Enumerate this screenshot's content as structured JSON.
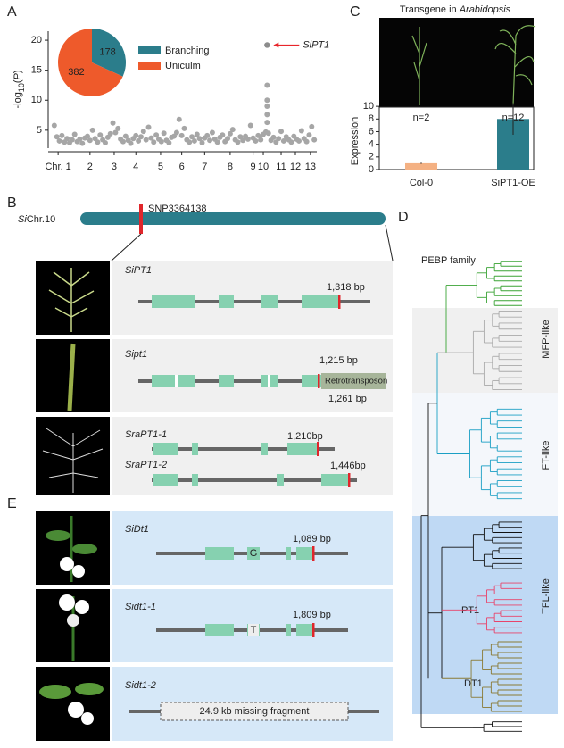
{
  "panel_labels": {
    "a": "A",
    "b": "B",
    "c": "C",
    "d": "D",
    "e": "E"
  },
  "chart_data": [
    {
      "type": "scatter",
      "ylabel": {
        "main": "-log",
        "sub": "10",
        "open": "(",
        "italic": "P",
        "close": ")"
      },
      "xlim": [
        0,
        104
      ],
      "ylim": [
        2,
        21.5
      ],
      "yticks": [
        5,
        10,
        15,
        20
      ],
      "xticks": [
        {
          "value": 2.5,
          "label": "Chr. 1"
        },
        {
          "value": 15,
          "label": "2"
        },
        {
          "value": 24.5,
          "label": "3"
        },
        {
          "value": 33,
          "label": "4"
        },
        {
          "value": 42.7,
          "label": "5"
        },
        {
          "value": 51,
          "label": "6"
        },
        {
          "value": 60,
          "label": "7"
        },
        {
          "value": 70,
          "label": "8"
        },
        {
          "value": 79,
          "label": "9"
        },
        {
          "value": 83,
          "label": "10"
        },
        {
          "value": 90,
          "label": "11"
        },
        {
          "value": 95.6,
          "label": "12"
        },
        {
          "value": 101.5,
          "label": "13"
        }
      ],
      "color": "#a6a6a6",
      "x": [
        1,
        2,
        3,
        4,
        5,
        6,
        7,
        8,
        9,
        10,
        11,
        12,
        13,
        14,
        15,
        16,
        17,
        18,
        19,
        20,
        21,
        22,
        23,
        24,
        25,
        26,
        27,
        28,
        29,
        30,
        31,
        32,
        33,
        34,
        35,
        36,
        37,
        38,
        39,
        40,
        41,
        42,
        43,
        44,
        45,
        46,
        47,
        48,
        49,
        50,
        51,
        52,
        53,
        54,
        55,
        56,
        57,
        58,
        59,
        60,
        61,
        62,
        63,
        64,
        65,
        66,
        67,
        68,
        69,
        70,
        71,
        72,
        73,
        74,
        75,
        76,
        77,
        78,
        79,
        80,
        81,
        82,
        83,
        84,
        84.5,
        84.5,
        84.5,
        84.5,
        84.5,
        85,
        86,
        87,
        88,
        89,
        90,
        91,
        92,
        93,
        94,
        95,
        96,
        97,
        98,
        99,
        100,
        101,
        102,
        103
      ],
      "y": [
        5.8,
        3.9,
        3.2,
        4.1,
        3.0,
        3.6,
        2.9,
        3.4,
        4.3,
        3.1,
        3.5,
        2.8,
        3.7,
        4.0,
        3.3,
        5.0,
        3.6,
        3.0,
        4.2,
        3.4,
        2.9,
        3.8,
        4.4,
        6.2,
        4.6,
        5.3,
        3.5,
        3.1,
        4.0,
        3.3,
        2.8,
        3.6,
        4.1,
        3.2,
        3.9,
        4.8,
        3.4,
        5.5,
        3.7,
        3.0,
        4.2,
        3.5,
        3.1,
        4.5,
        3.3,
        2.9,
        3.8,
        4.0,
        4.6,
        6.8,
        4.1,
        5.3,
        3.4,
        3.0,
        3.9,
        3.2,
        4.3,
        3.6,
        2.9,
        3.7,
        4.1,
        3.3,
        4.6,
        3.5,
        3.0,
        3.8,
        4.2,
        3.1,
        3.6,
        4.4,
        5.1,
        3.4,
        3.0,
        3.9,
        3.3,
        4.0,
        3.5,
        5.8,
        3.7,
        3.2,
        4.1,
        3.4,
        4.3,
        4.7,
        12.5,
        10.0,
        9.0,
        7.6,
        6.3,
        4.5,
        3.3,
        3.8,
        3.0,
        3.6,
        4.8,
        3.2,
        3.9,
        3.4,
        3.0,
        4.0,
        3.5,
        3.2,
        4.9,
        3.6,
        3.1,
        4.2,
        5.6,
        3.4
      ],
      "highlight": {
        "name": "SiPT1",
        "x": 84.5,
        "y": 19.2,
        "color": "#8c8c8c",
        "arrow_color": "#e8262b"
      }
    },
    {
      "type": "pie",
      "categories": [
        "Branching",
        "Uniculm"
      ],
      "values": [
        178,
        382
      ],
      "colors": [
        "#2b7d8b",
        "#ee5a2b"
      ]
    },
    {
      "type": "bar",
      "title": {
        "text": "Transgene in ",
        "italic": "Arabidopsis"
      },
      "ylabel": "Expression",
      "categories": [
        "Col-0",
        "SiPT1-OE"
      ],
      "values": [
        1,
        8
      ],
      "errors": [
        0.1,
        2.5
      ],
      "colors": [
        "#f4b183",
        "#2b7d8b"
      ],
      "ylim": [
        0,
        10.3
      ],
      "yticks": [
        0,
        2,
        4,
        6,
        8,
        10
      ],
      "annotations": [
        "n=2",
        "n=12"
      ]
    }
  ],
  "panel_b": {
    "chromosome": {
      "italic": "Si",
      "plain": "Chr.10"
    },
    "snp": "SNP3364138",
    "genes": [
      {
        "name": "SiPT1",
        "labels": [
          "1,318 bp"
        ]
      },
      {
        "name": "Sipt1",
        "labels": [
          "1,215 bp",
          "1,261 bp"
        ],
        "insert": "Retrotransposon"
      },
      {
        "name": "SraPT1-1",
        "labels": [
          "1,210bp"
        ]
      },
      {
        "name": "SraPT1-2",
        "labels": [
          "1,446bp"
        ]
      }
    ]
  },
  "panel_d": {
    "title": "PEBP family",
    "clades": [
      "MFP-like",
      "FT-like",
      "TFL-like"
    ],
    "subclades": [
      "PT1",
      "DT1"
    ]
  },
  "panel_e": {
    "genes": [
      {
        "name": "SiDt1",
        "snp": "G",
        "labels": [
          "1,089 bp"
        ]
      },
      {
        "name": "Sidt1-1",
        "snp": "T",
        "labels": [
          "1,809 bp"
        ]
      },
      {
        "name": "Sidt1-2",
        "missing": "24.9 kb missing fragment"
      }
    ]
  }
}
